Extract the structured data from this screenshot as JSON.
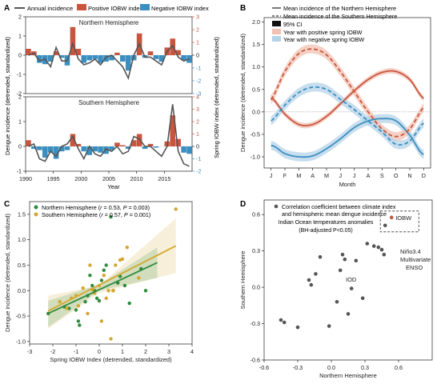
{
  "panels": {
    "a": {
      "letter": "A",
      "legend": {
        "annual": "Annual incidence",
        "positive": "Positive IOBW index",
        "negative": "Negative IOBW index"
      },
      "ylabel_left": "Dengue incidence (detrended, standardized)",
      "ylabel_right": "Spring IOBW index (detrended, standardized)",
      "xlabel": "Year",
      "colors": {
        "positive": "#c9553f",
        "negative": "#3b8fc0",
        "line": "#555555"
      }
    },
    "b": {
      "letter": "B",
      "legend": {
        "north": "Mean incidence of the Northern Hemisphere",
        "south": "Mean incidence of the Southern Hemisphere",
        "ci": "95% CI",
        "pos": "Year with positive spring IOBW",
        "neg": "Year with negative spring IOBW"
      }
    },
    "c": {
      "letter": "C",
      "legend": {
        "north_label": "Northern Hemisphere (",
        "north_r": "r",
        "north_stats": " = 0.53,  ",
        "north_p": "P",
        "north_pval": " = 0.003)",
        "south_label": "Southern Hemisphere (",
        "south_r": "r",
        "south_stats": " = 0.57,  ",
        "south_p": "P",
        "south_pval": " = 0.001)"
      }
    },
    "d": {
      "letter": "D",
      "legend_line1": "Correlation coefficient between climate index",
      "legend_line2": "and hemispheric mean dengue incidence",
      "subtitle_line1": "Indian Ocean temperatures anomalies",
      "subtitle_line2": "(BH-adjusted P<0.05)",
      "labels": {
        "iobw": "IOBW",
        "nino": "Niño3.4",
        "mei1": "Multivariate",
        "mei2": "ENSO",
        "iod": "IOD"
      }
    }
  },
  "chart_data": [
    {
      "panel": "A",
      "type": "bar",
      "x": [
        1990,
        1991,
        1992,
        1993,
        1994,
        1995,
        1996,
        1997,
        1998,
        1999,
        2000,
        2001,
        2002,
        2003,
        2004,
        2005,
        2006,
        2007,
        2008,
        2009,
        2010,
        2011,
        2012,
        2013,
        2014,
        2015,
        2016,
        2017,
        2018,
        2019
      ],
      "xlabel": "Year",
      "xticks": [
        1990,
        1995,
        2000,
        2005,
        2010,
        2015
      ],
      "subplots": [
        {
          "title": "Northern Hemisphere",
          "ylim": [
            -2,
            2
          ],
          "yticks": [
            -2,
            -1,
            0,
            1,
            2
          ],
          "right_ylim": [
            -3,
            3
          ],
          "right_yticks": [
            -3,
            -2,
            -1,
            0,
            1,
            2,
            3
          ],
          "iobw": [
            0.5,
            0.3,
            -0.6,
            -0.7,
            -0.5,
            0.3,
            -0.2,
            -0.8,
            2.2,
            0.5,
            -0.6,
            -0.4,
            -0.3,
            -0.6,
            -0.5,
            -0.4,
            0.2,
            -0.5,
            -1.2,
            -0.4,
            1.7,
            -0.2,
            0.3,
            -0.3,
            -0.5,
            0.6,
            1.3,
            0.4,
            -0.4,
            -0.6
          ],
          "incidence": [
            0.0,
            0.1,
            -0.3,
            -0.2,
            -0.6,
            0.4,
            -0.3,
            -0.3,
            0.6,
            -0.2,
            -0.5,
            -0.4,
            -0.2,
            -0.5,
            -0.1,
            0.0,
            -0.3,
            -0.6,
            -1.2,
            0.0,
            0.6,
            -0.1,
            -0.1,
            -0.3,
            -0.5,
            0.2,
            0.5,
            -0.1,
            -0.3,
            -0.2
          ]
        },
        {
          "title": "Southern Hemisphere",
          "ylim": [
            -1,
            2
          ],
          "yticks": [
            -1,
            0,
            1,
            2
          ],
          "right_ylim": [
            -2,
            4
          ],
          "right_yticks": [
            -2,
            -1,
            0,
            1,
            2,
            3,
            4
          ],
          "iobw": [
            0.5,
            -0.2,
            -0.3,
            -0.9,
            -0.5,
            -1.0,
            -0.4,
            -0.3,
            1.0,
            0.2,
            -0.4,
            -0.7,
            -0.4,
            -0.5,
            -0.6,
            -0.3,
            0.3,
            0.1,
            -0.2,
            0.5,
            1.0,
            -0.2,
            0.2,
            -0.1,
            0.0,
            0.4,
            2.5,
            0.6,
            -0.5,
            -0.6
          ],
          "incidence": [
            0.0,
            0.1,
            -0.5,
            -0.6,
            -0.2,
            -0.4,
            0.0,
            0.1,
            0.4,
            -0.1,
            -0.5,
            0.0,
            -0.3,
            -0.4,
            -0.1,
            -0.2,
            0.0,
            -0.3,
            -0.2,
            0.4,
            0.3,
            0.0,
            0.0,
            -0.2,
            -0.4,
            0.0,
            1.7,
            -0.2,
            -0.7,
            -0.8
          ]
        }
      ]
    },
    {
      "panel": "B",
      "type": "line",
      "categories": [
        "J",
        "F",
        "M",
        "A",
        "M",
        "J",
        "J",
        "A",
        "S",
        "O",
        "N",
        "D"
      ],
      "xlabel": "Month",
      "ylabel": "Dengue incidence (detrended, standardized)",
      "ylim": [
        -1.25,
        2.1
      ],
      "yticks": [
        -1.0,
        -0.5,
        0.0,
        0.5,
        1.0,
        1.5,
        2.0
      ],
      "series": [
        {
          "hemisphere": "north",
          "iobw": "positive",
          "values": [
            0.32,
            -0.05,
            -0.28,
            -0.28,
            -0.1,
            0.18,
            0.47,
            0.72,
            0.88,
            0.9,
            0.72,
            0.3
          ],
          "ci": 0.06
        },
        {
          "hemisphere": "north",
          "iobw": "negative",
          "values": [
            -0.75,
            -0.93,
            -1.0,
            -0.98,
            -0.82,
            -0.6,
            -0.35,
            -0.2,
            -0.15,
            -0.2,
            -0.52,
            -0.95
          ],
          "ci": 0.1
        },
        {
          "hemisphere": "south",
          "iobw": "positive",
          "values": [
            0.27,
            0.9,
            1.3,
            1.4,
            1.27,
            0.9,
            0.45,
            0.0,
            -0.38,
            -0.55,
            -0.38,
            0.1
          ],
          "ci": 0.1
        },
        {
          "hemisphere": "south",
          "iobw": "negative",
          "values": [
            -0.2,
            0.15,
            0.43,
            0.55,
            0.5,
            0.28,
            0.05,
            -0.2,
            -0.45,
            -0.72,
            -0.65,
            -0.25
          ],
          "ci": 0.1
        }
      ]
    },
    {
      "panel": "C",
      "type": "scatter",
      "xlabel": "Spring IOBW Index (detrended, standardized)",
      "ylabel": "Dengue incidence (detrended, standardized)",
      "xlim": [
        -3,
        4
      ],
      "ylim": [
        -1.05,
        1.75
      ],
      "xticks": [
        -3,
        -2,
        -1,
        0,
        1,
        2,
        3,
        4
      ],
      "yticks": [
        -1.0,
        -0.5,
        0.0,
        0.5,
        1.0,
        1.5
      ],
      "series": [
        {
          "hemisphere": "north",
          "r": 0.53,
          "p": 0.003,
          "color": "#2e8b3e",
          "points": [
            [
              -2.2,
              -0.45
            ],
            [
              -1.5,
              -0.32
            ],
            [
              -1.3,
              -0.35
            ],
            [
              -1.0,
              -0.38
            ],
            [
              -0.9,
              -0.6
            ],
            [
              -0.85,
              -0.68
            ],
            [
              -0.6,
              -0.22
            ],
            [
              -0.5,
              -0.1
            ],
            [
              -0.4,
              0.3
            ],
            [
              -0.3,
              0.1
            ],
            [
              -0.2,
              0.0
            ],
            [
              -0.1,
              -0.15
            ],
            [
              0.0,
              -0.2
            ],
            [
              0.1,
              0.2
            ],
            [
              0.2,
              0.4
            ],
            [
              0.3,
              0.5
            ],
            [
              0.5,
              1.45
            ],
            [
              0.6,
              0.0
            ],
            [
              0.8,
              0.15
            ],
            [
              0.9,
              0.28
            ],
            [
              1.1,
              0.1
            ],
            [
              1.3,
              -0.25
            ],
            [
              1.8,
              0.43
            ],
            [
              2.0,
              0.0
            ]
          ],
          "fit": {
            "x": [
              -2.2,
              2.5
            ],
            "y": [
              -0.45,
              0.55
            ]
          },
          "ci_band": {
            "x": [
              -2.2,
              0,
              2.5
            ],
            "lower": [
              -0.72,
              0.0,
              0.25
            ],
            "upper": [
              -0.2,
              0.12,
              0.85
            ]
          }
        },
        {
          "hemisphere": "south",
          "r": 0.57,
          "p": 0.001,
          "color": "#d4a72c",
          "points": [
            [
              -1.7,
              -0.22
            ],
            [
              -1.4,
              -0.35
            ],
            [
              -1.2,
              -0.15
            ],
            [
              -1.0,
              -0.1
            ],
            [
              -0.9,
              -0.3
            ],
            [
              -0.7,
              0.05
            ],
            [
              -0.5,
              -0.45
            ],
            [
              -0.4,
              0.5
            ],
            [
              -0.3,
              0.02
            ],
            [
              -0.2,
              -0.05
            ],
            [
              0.0,
              0.1
            ],
            [
              0.1,
              -0.6
            ],
            [
              0.2,
              0.3
            ],
            [
              0.3,
              -0.15
            ],
            [
              0.4,
              0.0
            ],
            [
              0.5,
              -0.95
            ],
            [
              0.6,
              0.0
            ],
            [
              0.7,
              0.5
            ],
            [
              0.9,
              0.6
            ],
            [
              1.0,
              0.62
            ],
            [
              1.2,
              0.85
            ],
            [
              1.7,
              0.25
            ],
            [
              3.3,
              1.6
            ]
          ],
          "fit": {
            "x": [
              -2.2,
              3.3
            ],
            "y": [
              -0.4,
              0.88
            ]
          },
          "ci_band": {
            "x": [
              -2.2,
              0,
              3.3
            ],
            "lower": [
              -0.75,
              -0.05,
              0.35
            ],
            "upper": [
              -0.1,
              0.1,
              1.42
            ]
          }
        }
      ]
    },
    {
      "panel": "D",
      "type": "scatter",
      "xlabel": "Northern Hemisphere",
      "ylabel": "Southern Hemisphere",
      "xlim": [
        -0.6,
        0.9
      ],
      "ylim": [
        -0.6,
        0.72
      ],
      "xticks": [
        -0.6,
        -0.3,
        0.0,
        0.3,
        0.6
      ],
      "yticks": [
        -0.6,
        -0.3,
        0.0,
        0.3,
        0.6
      ],
      "points": [
        [
          -0.45,
          -0.27
        ],
        [
          -0.42,
          -0.29
        ],
        [
          -0.3,
          -0.33
        ],
        [
          -0.2,
          0.06
        ],
        [
          -0.18,
          0.02
        ],
        [
          -0.14,
          0.11
        ],
        [
          -0.1,
          0.25
        ],
        [
          -0.02,
          -0.32
        ],
        [
          0.05,
          -0.12
        ],
        [
          0.08,
          0.14
        ],
        [
          0.1,
          0.27
        ],
        [
          0.12,
          0.23
        ],
        [
          0.15,
          -0.22
        ],
        [
          0.18,
          -0.01
        ],
        [
          0.22,
          0.22
        ],
        [
          0.28,
          -0.09
        ],
        [
          0.32,
          0.36
        ],
        [
          0.38,
          0.34
        ],
        [
          0.42,
          0.33
        ],
        [
          0.45,
          0.31
        ],
        [
          0.47,
          0.27
        ],
        [
          0.48,
          0.51
        ]
      ],
      "highlight": [
        0.48,
        0.51
      ]
    }
  ]
}
